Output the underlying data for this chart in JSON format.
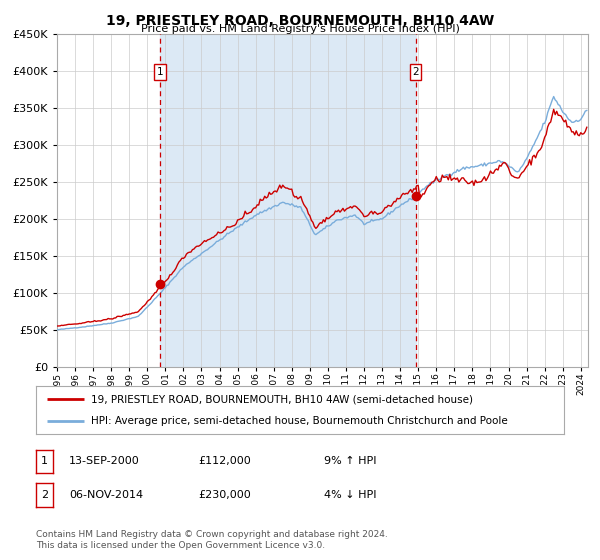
{
  "title": "19, PRIESTLEY ROAD, BOURNEMOUTH, BH10 4AW",
  "subtitle": "Price paid vs. HM Land Registry's House Price Index (HPI)",
  "legend_line1": "19, PRIESTLEY ROAD, BOURNEMOUTH, BH10 4AW (semi-detached house)",
  "legend_line2": "HPI: Average price, semi-detached house, Bournemouth Christchurch and Poole",
  "footer1": "Contains HM Land Registry data © Crown copyright and database right 2024.",
  "footer2": "This data is licensed under the Open Government Licence v3.0.",
  "transaction1_date": "13-SEP-2000",
  "transaction1_price": "£112,000",
  "transaction1_hpi": "9% ↑ HPI",
  "transaction2_date": "06-NOV-2014",
  "transaction2_price": "£230,000",
  "transaction2_hpi": "4% ↓ HPI",
  "bg_color": "#dce9f5",
  "plot_bg": "#ffffff",
  "fig_bg": "#ffffff",
  "line_red": "#cc0000",
  "line_blue": "#7aaddb",
  "vline_color": "#cc0000",
  "marker_color": "#cc0000",
  "ylim": [
    0,
    450000
  ],
  "yticks": [
    0,
    50000,
    100000,
    150000,
    200000,
    250000,
    300000,
    350000,
    400000,
    450000
  ],
  "transaction1_x": 2000.71,
  "transaction2_x": 2014.85,
  "xmin": 1995.0,
  "xmax": 2024.4
}
